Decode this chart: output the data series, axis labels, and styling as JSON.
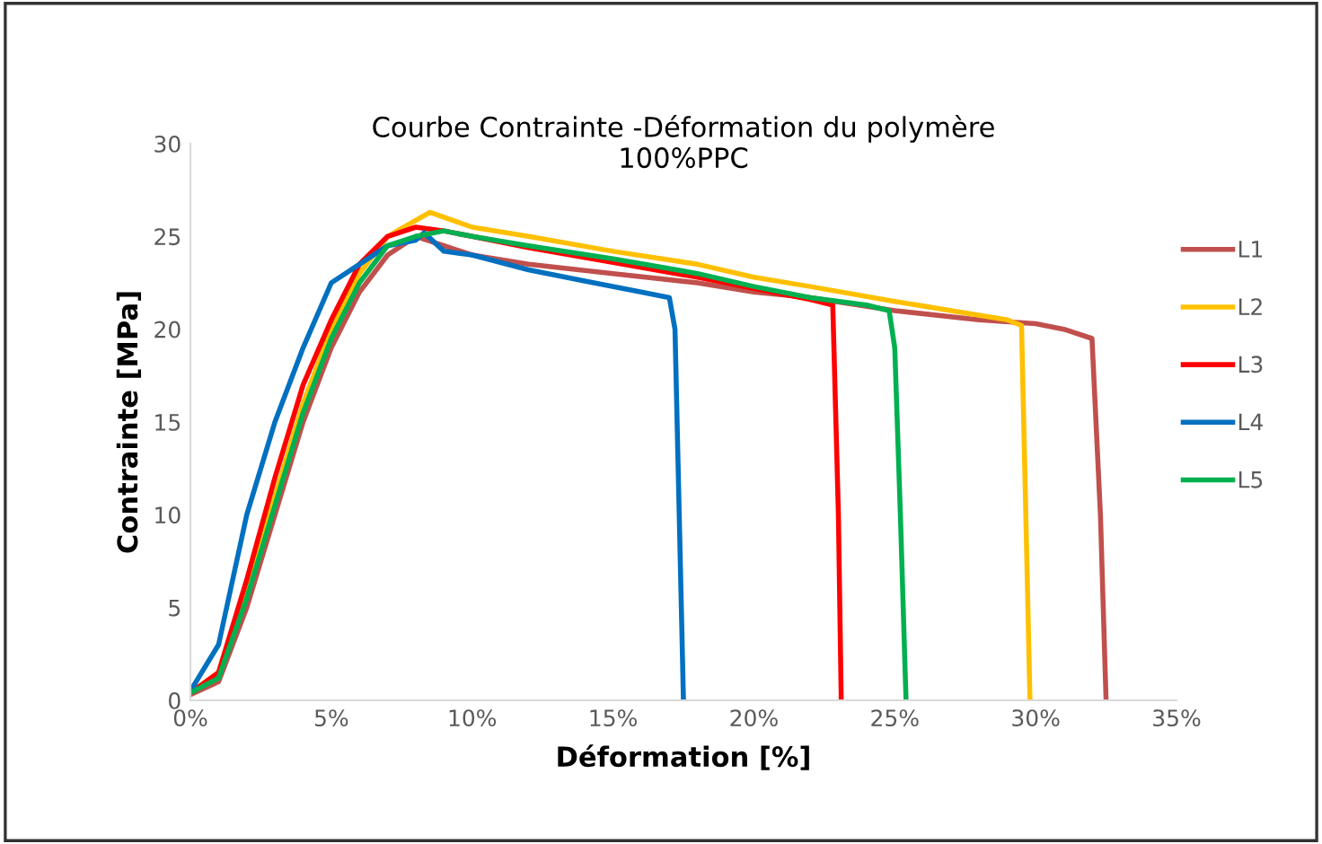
{
  "chart_data": {
    "type": "line",
    "title": "Courbe Contrainte -Déformation du polymère\n100%PPC",
    "xlabel": "Déformation [%]",
    "ylabel": "Contrainte [MPa]",
    "xlim": [
      0,
      35
    ],
    "xticks": [
      {
        "value": 0,
        "label": "0%"
      },
      {
        "value": 5,
        "label": "5%"
      },
      {
        "value": 10,
        "label": "10%"
      },
      {
        "value": 15,
        "label": "15%"
      },
      {
        "value": 20,
        "label": "20%"
      },
      {
        "value": 25,
        "label": "25%"
      },
      {
        "value": 30,
        "label": "30%"
      },
      {
        "value": 35,
        "label": "35%"
      }
    ],
    "ylim": [
      0,
      30
    ],
    "yticks": [
      0,
      5,
      10,
      15,
      20,
      25,
      30
    ],
    "grid": false,
    "legend": "right",
    "marker": "none",
    "line_style": "solid",
    "series": [
      {
        "name": "L1",
        "color": "#c0504d",
        "x": [
          0,
          1,
          2,
          3,
          4,
          5,
          6,
          7,
          8,
          9,
          10,
          12,
          15,
          18,
          20,
          22,
          25,
          28,
          30,
          31,
          32,
          32.3,
          32.5
        ],
        "values": [
          0.3,
          1,
          5,
          10,
          15,
          19,
          22,
          24,
          25,
          24.5,
          24,
          23.5,
          23,
          22.5,
          22,
          21.7,
          21,
          20.5,
          20.3,
          20,
          19.5,
          10,
          0
        ]
      },
      {
        "name": "L2",
        "color": "#ffc000",
        "x": [
          0,
          1,
          2,
          3,
          4,
          5,
          6,
          7,
          8.5,
          10,
          12,
          15,
          18,
          20,
          22,
          25,
          27,
          29,
          29.5,
          29.8
        ],
        "values": [
          0.4,
          1.5,
          6,
          11,
          16,
          20,
          23,
          25,
          26.3,
          25.5,
          25,
          24.2,
          23.5,
          22.8,
          22.3,
          21.5,
          21,
          20.5,
          20.2,
          0
        ]
      },
      {
        "name": "L3",
        "color": "#ff0000",
        "x": [
          0,
          1,
          2,
          3,
          4,
          5,
          6,
          7,
          8,
          9,
          10,
          12,
          15,
          18,
          20,
          22,
          22.8,
          23,
          23.1
        ],
        "values": [
          0.4,
          1.5,
          6.5,
          12,
          17,
          20.5,
          23.5,
          25,
          25.5,
          25.3,
          25,
          24.4,
          23.6,
          22.8,
          22.2,
          21.6,
          21.3,
          10,
          0
        ]
      },
      {
        "name": "L4",
        "color": "#0070c0",
        "x": [
          0,
          1,
          2,
          3,
          4,
          5,
          6,
          7,
          8,
          8.3,
          9,
          10,
          12,
          14,
          16,
          17,
          17.2,
          17.5
        ],
        "values": [
          0.5,
          3,
          10,
          15,
          19,
          22.5,
          23.5,
          24.5,
          24.8,
          25.2,
          24.2,
          24,
          23.2,
          22.6,
          22,
          21.7,
          20,
          0
        ]
      },
      {
        "name": "L5",
        "color": "#00b050",
        "x": [
          0,
          1,
          2,
          3,
          4,
          5,
          6,
          7,
          8,
          9,
          10,
          12,
          15,
          18,
          20,
          22,
          24,
          24.8,
          25,
          25.2,
          25.4
        ],
        "values": [
          0.4,
          1.2,
          5.5,
          10.5,
          15.5,
          19.5,
          22.5,
          24.5,
          25,
          25.3,
          25,
          24.5,
          23.8,
          23,
          22.3,
          21.7,
          21.3,
          21,
          19,
          10,
          0
        ]
      }
    ]
  }
}
